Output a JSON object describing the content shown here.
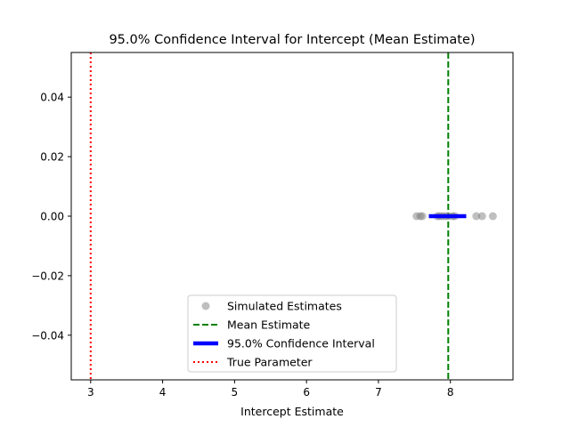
{
  "chart_data": {
    "type": "scatter",
    "title": "95.0% Confidence Interval for Intercept (Mean Estimate)",
    "xlabel": "Intercept Estimate",
    "ylabel": "",
    "xlim": [
      2.73,
      8.87
    ],
    "ylim": [
      -0.055,
      0.055
    ],
    "xticks": [
      3,
      4,
      5,
      6,
      7,
      8
    ],
    "yticks": [
      -0.04,
      -0.02,
      0.0,
      0.02,
      0.04
    ],
    "xtick_labels": [
      "3",
      "4",
      "5",
      "6",
      "7",
      "8"
    ],
    "ytick_labels": [
      "−0.04",
      "−0.02",
      "0.00",
      "0.02",
      "0.04"
    ],
    "grid": false,
    "legend_position": "lower-center",
    "series": [
      {
        "name": "Simulated Estimates",
        "kind": "scatter",
        "color": "#808080",
        "points": [
          {
            "x": 7.53,
            "y": 0
          },
          {
            "x": 7.58,
            "y": 0
          },
          {
            "x": 7.61,
            "y": 0
          },
          {
            "x": 7.82,
            "y": 0
          },
          {
            "x": 7.85,
            "y": 0
          },
          {
            "x": 7.89,
            "y": 0
          },
          {
            "x": 7.93,
            "y": 0
          },
          {
            "x": 7.97,
            "y": 0
          },
          {
            "x": 8.03,
            "y": 0
          },
          {
            "x": 8.06,
            "y": 0
          },
          {
            "x": 8.36,
            "y": 0
          },
          {
            "x": 8.44,
            "y": 0
          },
          {
            "x": 8.59,
            "y": 0
          }
        ]
      },
      {
        "name": "Mean Estimate",
        "kind": "vline",
        "x": 7.97,
        "color": "#008000",
        "style": "dashed"
      },
      {
        "name": "95.0% Confidence Interval",
        "kind": "hsegment",
        "x": [
          7.7,
          8.22
        ],
        "y": 0,
        "color": "#0000ff"
      },
      {
        "name": "True Parameter",
        "kind": "vline",
        "x": 3,
        "color": "#ff0000",
        "style": "dotted"
      }
    ]
  }
}
